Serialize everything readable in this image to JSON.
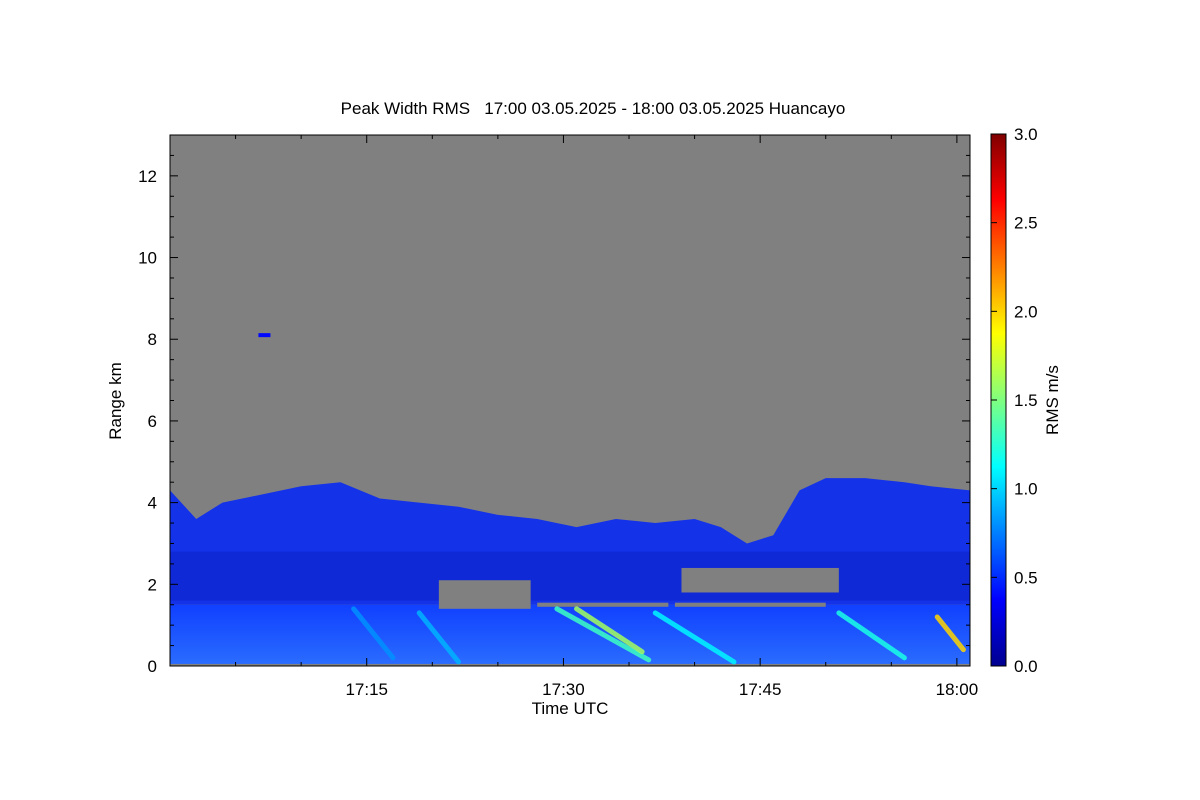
{
  "chart_data": {
    "type": "heatmap",
    "title": "Peak Width RMS   17:00 03.05.2025 - 18:00 03.05.2025 Huancayo",
    "xlabel": "Time UTC",
    "ylabel": "Range km",
    "x_range_min": [
      0,
      61
    ],
    "xlim": [
      "17:00",
      "18:00"
    ],
    "ylim": [
      0,
      13
    ],
    "x_ticks": [
      {
        "label": "17:15",
        "minutes": 15
      },
      {
        "label": "17:30",
        "minutes": 30
      },
      {
        "label": "17:45",
        "minutes": 45
      },
      {
        "label": "18:00",
        "minutes": 60
      }
    ],
    "y_ticks": [
      0,
      2,
      4,
      6,
      8,
      10,
      12
    ],
    "colorbar": {
      "label": "RMS m/s",
      "range": [
        0,
        3
      ],
      "ticks": [
        "0.0",
        "0.5",
        "1.0",
        "1.5",
        "2.0",
        "2.5",
        "3.0"
      ],
      "colormap": "jet"
    },
    "background_color": "#808080",
    "echo_top_km": [
      {
        "t": 0,
        "top": 4.3
      },
      {
        "t": 2,
        "top": 3.6
      },
      {
        "t": 4,
        "top": 4.0
      },
      {
        "t": 7,
        "top": 4.2
      },
      {
        "t": 10,
        "top": 4.4
      },
      {
        "t": 13,
        "top": 4.5
      },
      {
        "t": 16,
        "top": 4.1
      },
      {
        "t": 19,
        "top": 4.0
      },
      {
        "t": 22,
        "top": 3.9
      },
      {
        "t": 25,
        "top": 3.7
      },
      {
        "t": 28,
        "top": 3.6
      },
      {
        "t": 31,
        "top": 3.4
      },
      {
        "t": 34,
        "top": 3.6
      },
      {
        "t": 37,
        "top": 3.5
      },
      {
        "t": 40,
        "top": 3.6
      },
      {
        "t": 42,
        "top": 3.4
      },
      {
        "t": 44,
        "top": 3.0
      },
      {
        "t": 46,
        "top": 3.2
      },
      {
        "t": 48,
        "top": 4.3
      },
      {
        "t": 50,
        "top": 4.6
      },
      {
        "t": 53,
        "top": 4.6
      },
      {
        "t": 56,
        "top": 4.5
      },
      {
        "t": 58,
        "top": 4.4
      },
      {
        "t": 61,
        "top": 4.3
      }
    ],
    "gap_regions_km": [
      {
        "t0": 20.5,
        "t1": 27.5,
        "y0": 1.4,
        "y1": 2.1
      },
      {
        "t0": 39,
        "t1": 51,
        "y0": 1.8,
        "y1": 2.4
      },
      {
        "t0": 28,
        "t1": 38,
        "y0": 1.45,
        "y1": 1.55
      },
      {
        "t0": 38.5,
        "t1": 50,
        "y0": 1.45,
        "y1": 1.55
      }
    ],
    "high_value_streaks": [
      {
        "t0": 29.5,
        "y0": 1.4,
        "t1": 36.5,
        "y1": 0.15,
        "value": 1.3
      },
      {
        "t0": 31,
        "y0": 1.4,
        "t1": 36,
        "y1": 0.35,
        "value": 1.6
      },
      {
        "t0": 37,
        "y0": 1.3,
        "t1": 43,
        "y1": 0.1,
        "value": 1.1
      },
      {
        "t0": 51,
        "y0": 1.3,
        "t1": 56,
        "y1": 0.2,
        "value": 1.2
      },
      {
        "t0": 58.5,
        "y0": 1.2,
        "t1": 60.5,
        "y1": 0.4,
        "value": 2.0
      },
      {
        "t0": 19,
        "y0": 1.3,
        "t1": 22,
        "y1": 0.1,
        "value": 0.9
      },
      {
        "t0": 14,
        "y0": 1.4,
        "t1": 17,
        "y1": 0.2,
        "value": 0.8
      }
    ],
    "isolated_echo": {
      "t": 7.2,
      "range_km": 8.1,
      "value": 0.4
    }
  }
}
